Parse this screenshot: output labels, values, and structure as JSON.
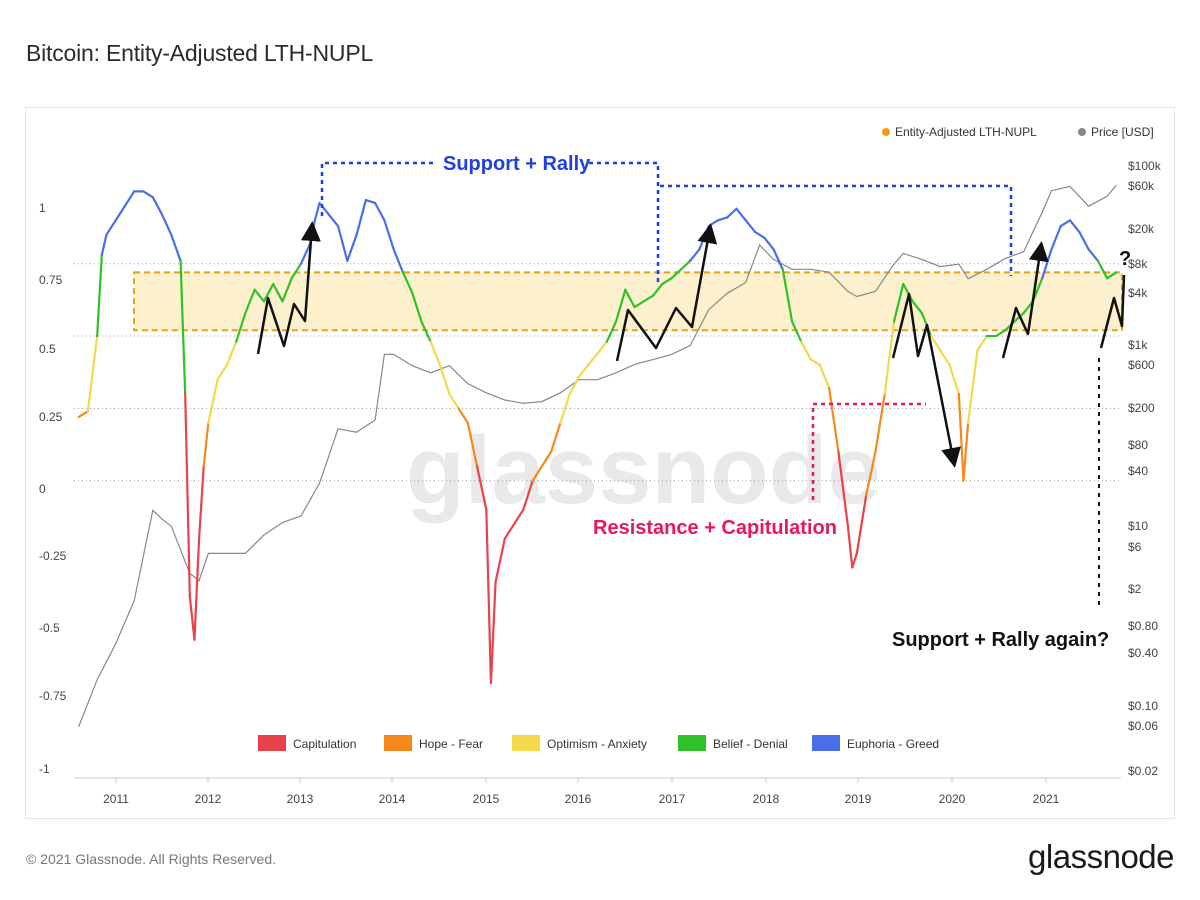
{
  "header": {
    "title": "Bitcoin: Entity-Adjusted LTH-NUPL"
  },
  "footer": {
    "copyright": "© 2021 Glassnode. All Rights Reserved.",
    "logo": "glassnode"
  },
  "watermark": "glassnode",
  "chart_data": {
    "type": "line",
    "title": "Bitcoin: Entity-Adjusted LTH-NUPL",
    "xlabel": "",
    "ylabel": "",
    "y2label": "",
    "grid": false,
    "legend_placement": "top-right",
    "x_ticks": [
      "2011",
      "2012",
      "2013",
      "2014",
      "2015",
      "2016",
      "2017",
      "2018",
      "2019",
      "2020",
      "2021"
    ],
    "y_left_ticks": [
      "1",
      "0.75",
      "0.5",
      "0.25",
      "0",
      "-0.25",
      "-0.5",
      "-0.75",
      "-1"
    ],
    "y_left_range": [
      -1,
      1.15
    ],
    "y_right_ticks": [
      "$100k",
      "$60k",
      "$20k",
      "$8k",
      "$4k",
      "$1k",
      "$600",
      "$200",
      "$80",
      "$40",
      "$10",
      "$6",
      "$2",
      "$0.80",
      "$0.40",
      "$0.10",
      "$0.06",
      "$0.02"
    ],
    "y_right_log": true,
    "series": [
      {
        "name": "Entity-Adjusted LTH-NUPL",
        "color": "#f39c12",
        "x": [
          2010.6,
          2010.7,
          2010.8,
          2010.85,
          2010.9,
          2011.0,
          2011.1,
          2011.2,
          2011.3,
          2011.4,
          2011.5,
          2011.6,
          2011.7,
          2011.75,
          2011.8,
          2011.85,
          2011.9,
          2011.95,
          2012.0,
          2012.1,
          2012.2,
          2012.3,
          2012.4,
          2012.5,
          2012.6,
          2012.7,
          2012.8,
          2012.9,
          2013.0,
          2013.1,
          2013.15,
          2013.2,
          2013.3,
          2013.4,
          2013.5,
          2013.6,
          2013.7,
          2013.8,
          2013.9,
          2014.0,
          2014.1,
          2014.2,
          2014.3,
          2014.4,
          2014.5,
          2014.6,
          2014.7,
          2014.8,
          2014.9,
          2015.0,
          2015.05,
          2015.1,
          2015.2,
          2015.3,
          2015.4,
          2015.5,
          2015.6,
          2015.7,
          2015.8,
          2015.9,
          2016.0,
          2016.1,
          2016.2,
          2016.3,
          2016.4,
          2016.5,
          2016.6,
          2016.7,
          2016.8,
          2016.9,
          2017.0,
          2017.1,
          2017.2,
          2017.3,
          2017.4,
          2017.5,
          2017.6,
          2017.7,
          2017.8,
          2017.9,
          2018.0,
          2018.1,
          2018.2,
          2018.3,
          2018.4,
          2018.5,
          2018.6,
          2018.7,
          2018.8,
          2018.9,
          2018.95,
          2019.0,
          2019.1,
          2019.2,
          2019.3,
          2019.4,
          2019.5,
          2019.6,
          2019.7,
          2019.8,
          2019.9,
          2020.0,
          2020.1,
          2020.15,
          2020.2,
          2020.3,
          2020.4,
          2020.5,
          2020.6,
          2020.7,
          2020.8,
          2020.9,
          2021.0,
          2021.1,
          2021.2,
          2021.3,
          2021.4,
          2021.5,
          2021.6,
          2021.7,
          2021.8
        ],
        "values": [
          0.22,
          0.24,
          0.5,
          0.78,
          0.85,
          0.9,
          0.95,
          1.0,
          1.0,
          0.98,
          0.92,
          0.85,
          0.76,
          0.3,
          -0.4,
          -0.55,
          -0.2,
          0.05,
          0.2,
          0.35,
          0.4,
          0.48,
          0.58,
          0.66,
          0.62,
          0.68,
          0.62,
          0.7,
          0.75,
          0.82,
          0.9,
          0.96,
          0.92,
          0.88,
          0.76,
          0.85,
          0.97,
          0.96,
          0.9,
          0.8,
          0.72,
          0.65,
          0.55,
          0.48,
          0.4,
          0.3,
          0.25,
          0.2,
          0.05,
          -0.1,
          -0.7,
          -0.35,
          -0.2,
          -0.15,
          -0.1,
          0.0,
          0.05,
          0.1,
          0.2,
          0.3,
          0.36,
          0.4,
          0.44,
          0.48,
          0.55,
          0.66,
          0.6,
          0.62,
          0.64,
          0.68,
          0.7,
          0.73,
          0.76,
          0.8,
          0.88,
          0.9,
          0.91,
          0.94,
          0.9,
          0.86,
          0.84,
          0.8,
          0.73,
          0.55,
          0.48,
          0.42,
          0.4,
          0.32,
          0.1,
          -0.15,
          -0.3,
          -0.25,
          -0.05,
          0.1,
          0.3,
          0.55,
          0.68,
          0.62,
          0.58,
          0.5,
          0.45,
          0.4,
          0.3,
          0.0,
          0.2,
          0.45,
          0.5,
          0.5,
          0.52,
          0.55,
          0.58,
          0.62,
          0.7,
          0.8,
          0.88,
          0.9,
          0.86,
          0.8,
          0.76,
          0.7,
          0.72
        ]
      },
      {
        "name": "Price [USD]",
        "color": "#888888",
        "x": [
          2010.6,
          2010.8,
          2011.0,
          2011.2,
          2011.4,
          2011.5,
          2011.6,
          2011.8,
          2011.9,
          2012.0,
          2012.2,
          2012.4,
          2012.6,
          2012.8,
          2013.0,
          2013.2,
          2013.4,
          2013.6,
          2013.8,
          2013.9,
          2014.0,
          2014.2,
          2014.4,
          2014.6,
          2014.8,
          2015.0,
          2015.2,
          2015.4,
          2015.6,
          2015.8,
          2016.0,
          2016.2,
          2016.4,
          2016.6,
          2016.8,
          2017.0,
          2017.2,
          2017.4,
          2017.6,
          2017.8,
          2017.95,
          2018.1,
          2018.3,
          2018.5,
          2018.7,
          2018.9,
          2019.0,
          2019.2,
          2019.4,
          2019.5,
          2019.7,
          2019.9,
          2020.1,
          2020.2,
          2020.4,
          2020.6,
          2020.8,
          2021.0,
          2021.1,
          2021.3,
          2021.5,
          2021.7,
          2021.8
        ],
        "values": [
          0.06,
          0.2,
          0.5,
          1.5,
          15,
          12,
          10,
          3,
          2.5,
          5,
          5,
          5,
          8,
          11,
          13,
          30,
          120,
          110,
          150,
          800,
          800,
          600,
          500,
          600,
          380,
          300,
          250,
          230,
          240,
          300,
          420,
          420,
          500,
          620,
          700,
          800,
          1000,
          2500,
          3800,
          5000,
          13000,
          9000,
          7000,
          7000,
          6500,
          4000,
          3500,
          4000,
          8000,
          10500,
          9000,
          7500,
          8000,
          5500,
          7000,
          9200,
          11000,
          30000,
          52000,
          58000,
          35000,
          45000,
          60000
        ]
      }
    ],
    "zones": [
      {
        "label": "Capitulation",
        "color": "#e8424a",
        "range": [
          -1,
          0
        ]
      },
      {
        "label": "Hope - Fear",
        "color": "#f4891e",
        "range": [
          0,
          0.25
        ]
      },
      {
        "label": "Optimism - Anxiety",
        "color": "#f3d94b",
        "range": [
          0.25,
          0.5
        ]
      },
      {
        "label": "Belief - Denial",
        "color": "#2fc228",
        "range": [
          0.5,
          0.75
        ]
      },
      {
        "label": "Euphoria - Greed",
        "color": "#4a6ee8",
        "range": [
          0.75,
          1.15
        ]
      }
    ],
    "support_band": [
      0.52,
      0.72
    ],
    "annotations": [
      {
        "text": "Support + Rally",
        "color": "#1f3fe0"
      },
      {
        "text": "Resistance + Capitulation",
        "color": "#e8185a"
      },
      {
        "text": "Support + Rally again?",
        "color": "#111111"
      },
      {
        "text": "?",
        "color": "#111111"
      }
    ]
  }
}
